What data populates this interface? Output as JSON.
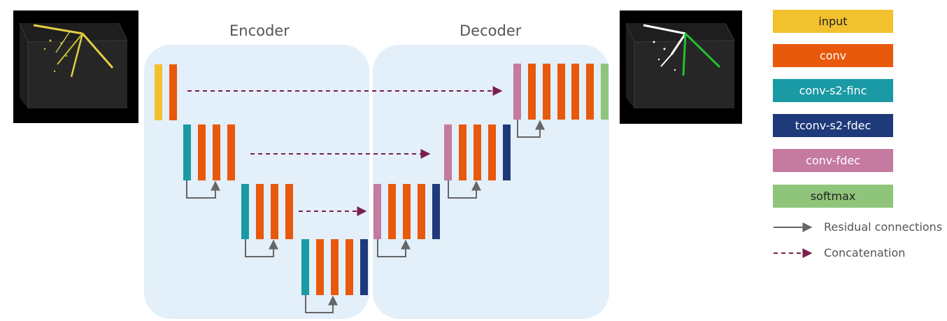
{
  "encoder_title": "Encoder",
  "decoder_title": "Decoder",
  "legend": [
    {
      "key": "input",
      "label": "input",
      "color": "#f2c12e",
      "text_color": "#222222"
    },
    {
      "key": "conv",
      "label": "conv",
      "color": "#e8590c",
      "text_color": "#ffffff"
    },
    {
      "key": "conv-s2-finc",
      "label": "conv-s2-finc",
      "color": "#1a9aa5",
      "text_color": "#ffffff"
    },
    {
      "key": "tconv-s2-fdec",
      "label": "tconv-s2-fdec",
      "color": "#1f3a7a",
      "text_color": "#ffffff"
    },
    {
      "key": "conv-fdec",
      "label": "conv-fdec",
      "color": "#c57aa0",
      "text_color": "#ffffff"
    },
    {
      "key": "softmax",
      "label": "softmax",
      "color": "#8fc47b",
      "text_color": "#222222"
    }
  ],
  "residual_label": "Residual connections",
  "concat_label": "Concatenation",
  "colors": {
    "panel": "#e3eff9",
    "residual": "#666666",
    "concat": "#7a1f4e",
    "image_bg": "#000000"
  }
}
